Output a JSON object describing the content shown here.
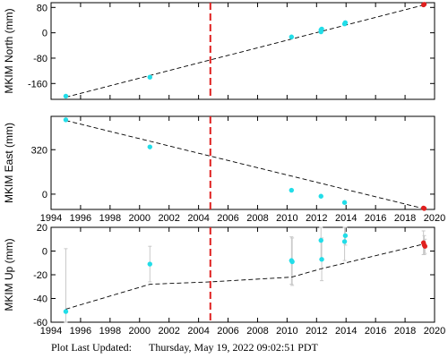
{
  "footer": {
    "label": "Plot Last Updated:",
    "timestamp": "Thursday, May 19, 2022 09:02:51 PDT"
  },
  "colors": {
    "points": "#22dde8",
    "latest_points": "#e0201f",
    "event_line": "#e0201f",
    "trend_line": "#000000",
    "error_bars": "#c8c8c8"
  },
  "chart_data": [
    {
      "type": "scatter",
      "ylabel": "MKIM North (mm)",
      "xlim": [
        1994,
        2020
      ],
      "ylim": [
        -210,
        95
      ],
      "yticks": [
        80,
        0,
        -80,
        -160
      ],
      "xticks": [
        1994,
        1996,
        1998,
        2000,
        2002,
        2004,
        2006,
        2008,
        2010,
        2012,
        2014,
        2016,
        2018,
        2020
      ],
      "x_tick_labels_shown": false,
      "grid": false,
      "event_line_x": 2004.8,
      "trend": {
        "x": [
          1995.0,
          2019.3
        ],
        "y": [
          -203,
          88
        ]
      },
      "series": [
        {
          "role": "observations",
          "x": [
            1995.0,
            2000.7,
            2010.3,
            2012.3,
            2012.3,
            2012.35,
            2013.9,
            2013.95
          ],
          "y": [
            -200,
            -140,
            -13,
            3,
            9,
            12,
            28,
            32
          ]
        },
        {
          "role": "latest",
          "x": [
            2019.25,
            2019.3
          ],
          "y": [
            88,
            90
          ]
        }
      ]
    },
    {
      "type": "scatter",
      "ylabel": "MKIM East (mm)",
      "xlim": [
        1994,
        2020
      ],
      "ylim": [
        -110,
        560
      ],
      "yticks": [
        320,
        0
      ],
      "xticks": [
        1994,
        1996,
        1998,
        2000,
        2002,
        2004,
        2006,
        2008,
        2010,
        2012,
        2014,
        2016,
        2018,
        2020
      ],
      "x_tick_labels_shown": true,
      "grid": false,
      "event_line_x": 2004.8,
      "trend": {
        "x": [
          1995.0,
          2019.3
        ],
        "y": [
          530,
          -105
        ]
      },
      "series": [
        {
          "role": "observations",
          "x": [
            1995.0,
            2000.7,
            2010.3,
            2012.3,
            2013.9
          ],
          "y": [
            535,
            340,
            28,
            -15,
            -60
          ]
        },
        {
          "role": "latest",
          "x": [
            2019.25,
            2019.3
          ],
          "y": [
            -100,
            -103
          ]
        }
      ]
    },
    {
      "type": "scatter",
      "ylabel": "MKIM Up (mm)",
      "xlim": [
        1994,
        2020
      ],
      "ylim": [
        -60,
        20
      ],
      "yticks": [
        20,
        0,
        -20,
        -40,
        -60
      ],
      "xticks": [
        1994,
        1996,
        1998,
        2000,
        2002,
        2004,
        2006,
        2008,
        2010,
        2012,
        2014,
        2016,
        2018,
        2020
      ],
      "x_tick_labels_shown": true,
      "grid": false,
      "event_line_x": 2004.8,
      "trend": {
        "x": [
          1995.0,
          2000.7,
          2004.8,
          2010.3,
          2012.3,
          2019.3
        ],
        "y": [
          -49,
          -28,
          -26,
          -22,
          -15,
          6
        ]
      },
      "series": [
        {
          "role": "observations",
          "x": [
            1995.0,
            2000.7,
            2010.3,
            2010.35,
            2012.3,
            2012.35,
            2013.9,
            2013.95
          ],
          "y": [
            -51,
            -11,
            -8,
            -9,
            9,
            -7,
            8,
            13
          ],
          "err": [
            53,
            15,
            20,
            20,
            16,
            18,
            16,
            8
          ]
        },
        {
          "role": "latest",
          "x": [
            2019.25,
            2019.3,
            2019.35
          ],
          "y": [
            7,
            5,
            4
          ],
          "err": [
            10,
            8,
            6
          ]
        }
      ]
    }
  ]
}
